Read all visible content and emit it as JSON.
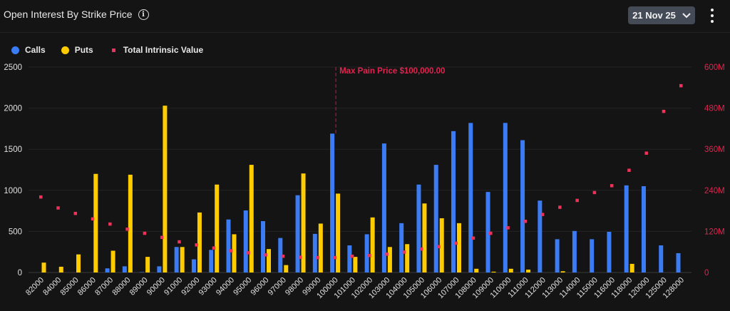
{
  "header": {
    "title": "Open Interest By Strike Price",
    "info_icon": "info-circle-icon",
    "date_selector": "21 Nov 25",
    "dropdown_icon": "chevron-down-icon",
    "menu_icon": "kebab-menu-icon"
  },
  "legend": [
    {
      "label": "Calls",
      "color": "#3b7cf5"
    },
    {
      "label": "Puts",
      "color": "#ffcc00"
    },
    {
      "label": "Total Intrinsic Value",
      "color": "#f0325a"
    }
  ],
  "chart_data": {
    "type": "bar",
    "categories": [
      "82000",
      "84000",
      "85000",
      "86000",
      "87000",
      "88000",
      "89000",
      "90000",
      "91000",
      "92000",
      "93000",
      "94000",
      "95000",
      "96000",
      "97000",
      "98000",
      "99000",
      "100000",
      "101000",
      "102000",
      "103000",
      "104000",
      "105000",
      "106000",
      "107000",
      "108000",
      "109000",
      "110000",
      "111000",
      "112000",
      "113000",
      "114000",
      "115000",
      "116000",
      "118000",
      "120000",
      "125000",
      "128000"
    ],
    "series": [
      {
        "name": "Calls",
        "axis": "left",
        "type": "bar",
        "color": "#3b7cf5",
        "values": [
          0,
          0,
          0,
          0,
          50,
          75,
          5,
          75,
          310,
          160,
          275,
          645,
          755,
          625,
          420,
          940,
          470,
          1690,
          330,
          465,
          1570,
          600,
          1070,
          1310,
          1720,
          1820,
          980,
          1820,
          1610,
          875,
          405,
          505,
          405,
          495,
          1060,
          1050,
          330,
          235
        ]
      },
      {
        "name": "Puts",
        "axis": "left",
        "type": "bar",
        "color": "#ffcc00",
        "values": [
          120,
          70,
          220,
          1200,
          265,
          1190,
          190,
          2030,
          310,
          730,
          1070,
          465,
          1310,
          285,
          90,
          1205,
          595,
          960,
          190,
          670,
          310,
          345,
          840,
          660,
          600,
          45,
          10,
          45,
          35,
          0,
          15,
          0,
          0,
          0,
          105,
          0,
          0,
          0
        ]
      },
      {
        "name": "Total Intrinsic Value",
        "axis": "right",
        "type": "scatter",
        "color": "#f0325a",
        "unit": "M",
        "values": [
          221,
          189,
          173,
          157,
          142,
          127,
          115,
          103,
          90,
          81,
          72,
          64,
          58,
          52,
          48,
          45,
          44,
          44,
          48,
          50,
          54,
          60,
          69,
          76,
          86,
          101,
          115,
          131,
          150,
          170,
          191,
          211,
          234,
          254,
          299,
          349,
          471,
          546
        ]
      }
    ],
    "y_left": {
      "lim": [
        0,
        2500
      ],
      "ticks": [
        "0",
        "500",
        "1000",
        "1500",
        "2000",
        "2500"
      ]
    },
    "y_right": {
      "lim": [
        0,
        600
      ],
      "ticks": [
        "0",
        "120M",
        "240M",
        "360M",
        "480M",
        "600M"
      ],
      "color": "#e0244f"
    },
    "grid": true,
    "legend_position": "top-left",
    "annotation": {
      "label": "Max Pain Price $100,000.00",
      "category": "100000",
      "color": "#e0244f"
    }
  }
}
